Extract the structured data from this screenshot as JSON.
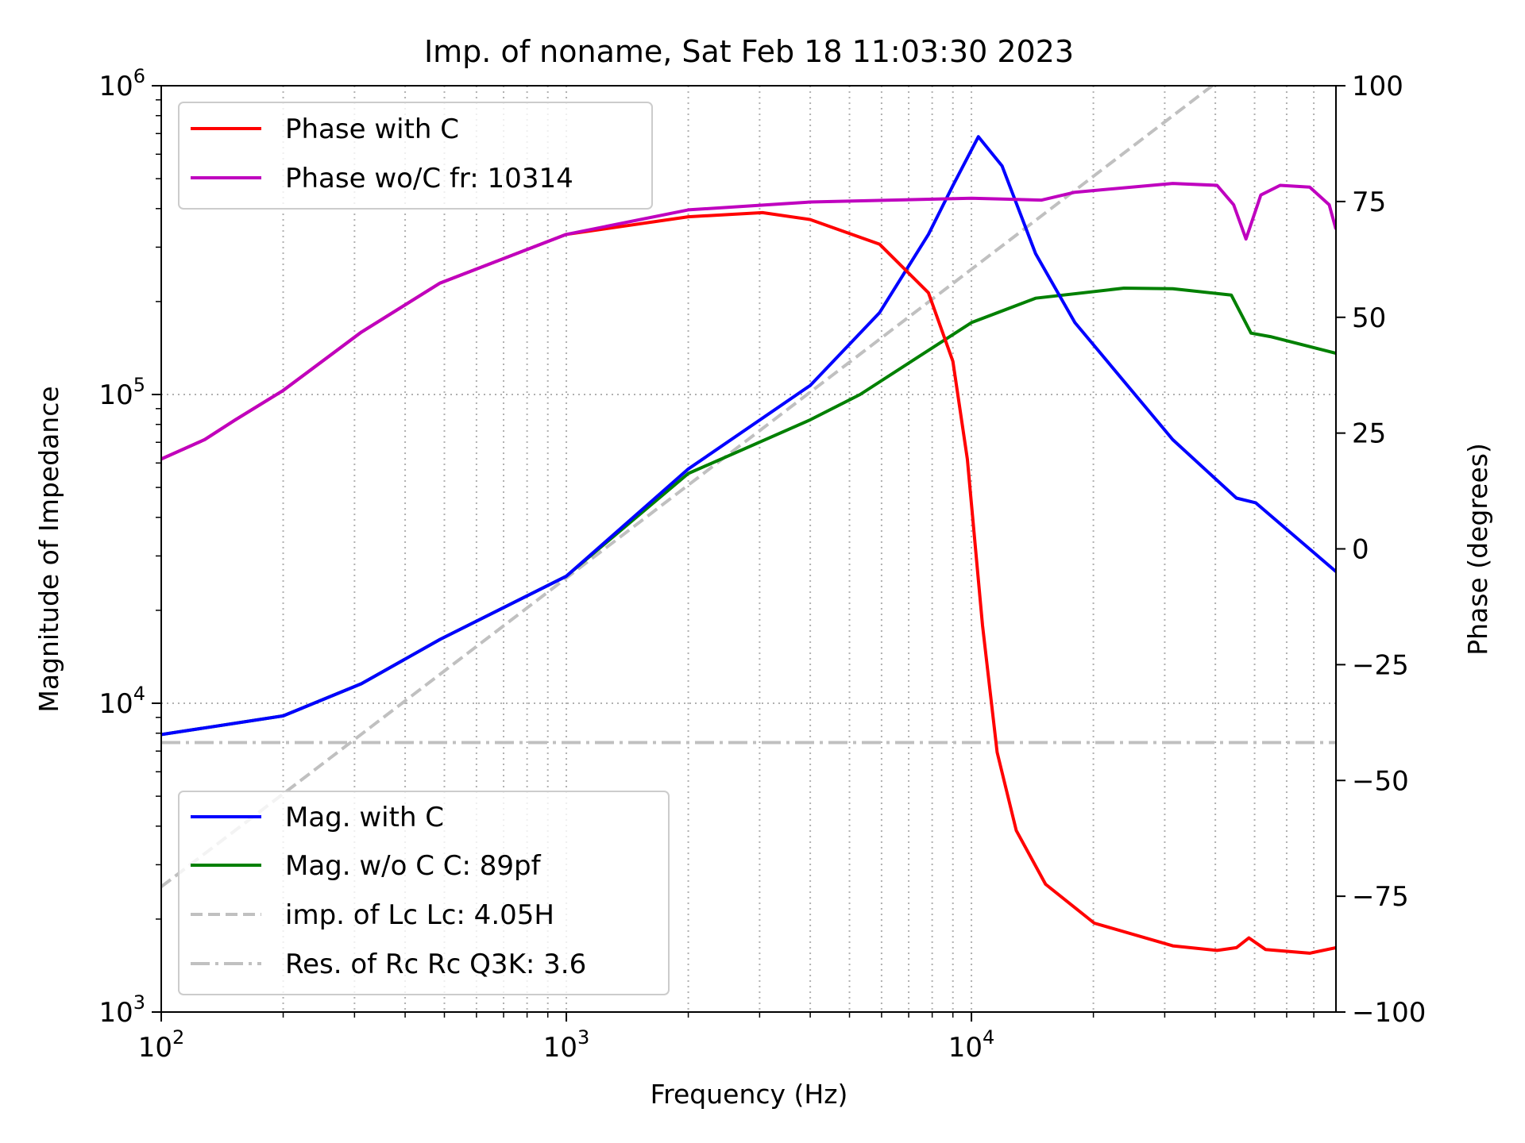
{
  "chart_data": {
    "type": "line",
    "title": "Imp. of noname, Sat Feb 18 11:03:30 2023",
    "xlabel": "Frequency (Hz)",
    "ylabel": "Magnitude of Impedance",
    "y2label": "Phase (degrees)",
    "xscale": "log",
    "yscale": "log",
    "xlim": [
      100,
      79400
    ],
    "ylim": [
      1000,
      1000000
    ],
    "y2lim": [
      -100,
      100
    ],
    "x_ticks": [
      100,
      1000,
      10000
    ],
    "y_ticks": [
      1000,
      10000,
      100000,
      1000000
    ],
    "y2_ticks": [
      100,
      75,
      50,
      25,
      0,
      -25,
      -50,
      -75,
      -100
    ],
    "grid": "dotted, major and minor x, major y",
    "legends": [
      {
        "placement": "upper-left",
        "entries": [
          "Phase with C",
          "Phase wo/C fr: 10314"
        ]
      },
      {
        "placement": "lower-left",
        "entries": [
          "Mag. with C",
          "Mag. w/o C  C: 89pf",
          "imp. of Lc  Lc: 4.05H",
          "Res. of Rc Rc Q3K: 3.6"
        ]
      }
    ],
    "series": [
      {
        "name": "Phase with C",
        "axis": "right",
        "color": "#ff0000",
        "style": "solid",
        "points": [
          [
            100,
            19.4
          ],
          [
            128,
            23.6
          ],
          [
            152,
            27.8
          ],
          [
            200,
            34.2
          ],
          [
            312,
            46.8
          ],
          [
            488,
            57.4
          ],
          [
            1000,
            67.9
          ],
          [
            2000,
            71.7
          ],
          [
            3050,
            72.6
          ],
          [
            4000,
            71.1
          ],
          [
            5930,
            65.8
          ],
          [
            7830,
            55.3
          ],
          [
            9000,
            40.5
          ],
          [
            9770,
            19.4
          ],
          [
            10650,
            -16.5
          ],
          [
            11570,
            -43.9
          ],
          [
            12900,
            -60.8
          ],
          [
            15240,
            -72.4
          ],
          [
            20100,
            -80.8
          ],
          [
            31400,
            -85.7
          ],
          [
            40400,
            -86.7
          ],
          [
            45100,
            -86.1
          ],
          [
            48400,
            -84
          ],
          [
            53200,
            -86.5
          ],
          [
            68400,
            -87.3
          ],
          [
            79400,
            -86.1
          ]
        ]
      },
      {
        "name": "Phase wo/C fr: 10314",
        "axis": "right",
        "color": "#bf00bf",
        "style": "solid",
        "points": [
          [
            100,
            19.4
          ],
          [
            128,
            23.6
          ],
          [
            152,
            27.8
          ],
          [
            200,
            34.2
          ],
          [
            312,
            46.8
          ],
          [
            488,
            57.4
          ],
          [
            1000,
            67.9
          ],
          [
            2000,
            73.2
          ],
          [
            4000,
            74.9
          ],
          [
            10000,
            75.7
          ],
          [
            14900,
            75.3
          ],
          [
            18000,
            77
          ],
          [
            31400,
            78.9
          ],
          [
            40400,
            78.5
          ],
          [
            44400,
            74.3
          ],
          [
            47600,
            66.9
          ],
          [
            51800,
            76.4
          ],
          [
            57800,
            78.5
          ],
          [
            68400,
            78.1
          ],
          [
            76400,
            74.3
          ],
          [
            79400,
            69
          ]
        ]
      },
      {
        "name": "Mag. with C",
        "axis": "left",
        "color": "#0000ff",
        "style": "solid",
        "points": [
          [
            100,
            7920
          ],
          [
            200,
            9100
          ],
          [
            312,
            11570
          ],
          [
            488,
            16100
          ],
          [
            1000,
            25800
          ],
          [
            2000,
            57400
          ],
          [
            4000,
            107000
          ],
          [
            5930,
            184000
          ],
          [
            7830,
            330000
          ],
          [
            9000,
            475000
          ],
          [
            10400,
            684000
          ],
          [
            11900,
            550000
          ],
          [
            14400,
            286000
          ],
          [
            18000,
            171000
          ],
          [
            31400,
            71400
          ],
          [
            45100,
            46200
          ],
          [
            50300,
            44600
          ],
          [
            79400,
            26700
          ]
        ]
      },
      {
        "name": "Mag. w/o C  C: 89pf",
        "axis": "left",
        "color": "#008000",
        "style": "solid",
        "points": [
          [
            100,
            7920
          ],
          [
            200,
            9100
          ],
          [
            312,
            11570
          ],
          [
            488,
            16100
          ],
          [
            1000,
            25800
          ],
          [
            2000,
            55500
          ],
          [
            4000,
            82800
          ],
          [
            5310,
            100000
          ],
          [
            10000,
            171000
          ],
          [
            14400,
            205000
          ],
          [
            23800,
            221000
          ],
          [
            31400,
            220000
          ],
          [
            43800,
            210000
          ],
          [
            49000,
            158000
          ],
          [
            54700,
            154000
          ],
          [
            79400,
            136000
          ]
        ]
      },
      {
        "name": "imp. of Lc  Lc: 4.05H",
        "axis": "left",
        "color": "#c0c0c0",
        "style": "dashed",
        "points": [
          [
            100,
            2545
          ],
          [
            1000,
            25450
          ],
          [
            10000,
            254500
          ],
          [
            39300,
            1000000
          ]
        ]
      },
      {
        "name": "Res. of Rc Rc Q3K: 3.6",
        "axis": "left",
        "color": "#c0c0c0",
        "style": "dashdot",
        "points": [
          [
            100,
            7460
          ],
          [
            79400,
            7460
          ]
        ]
      }
    ]
  }
}
